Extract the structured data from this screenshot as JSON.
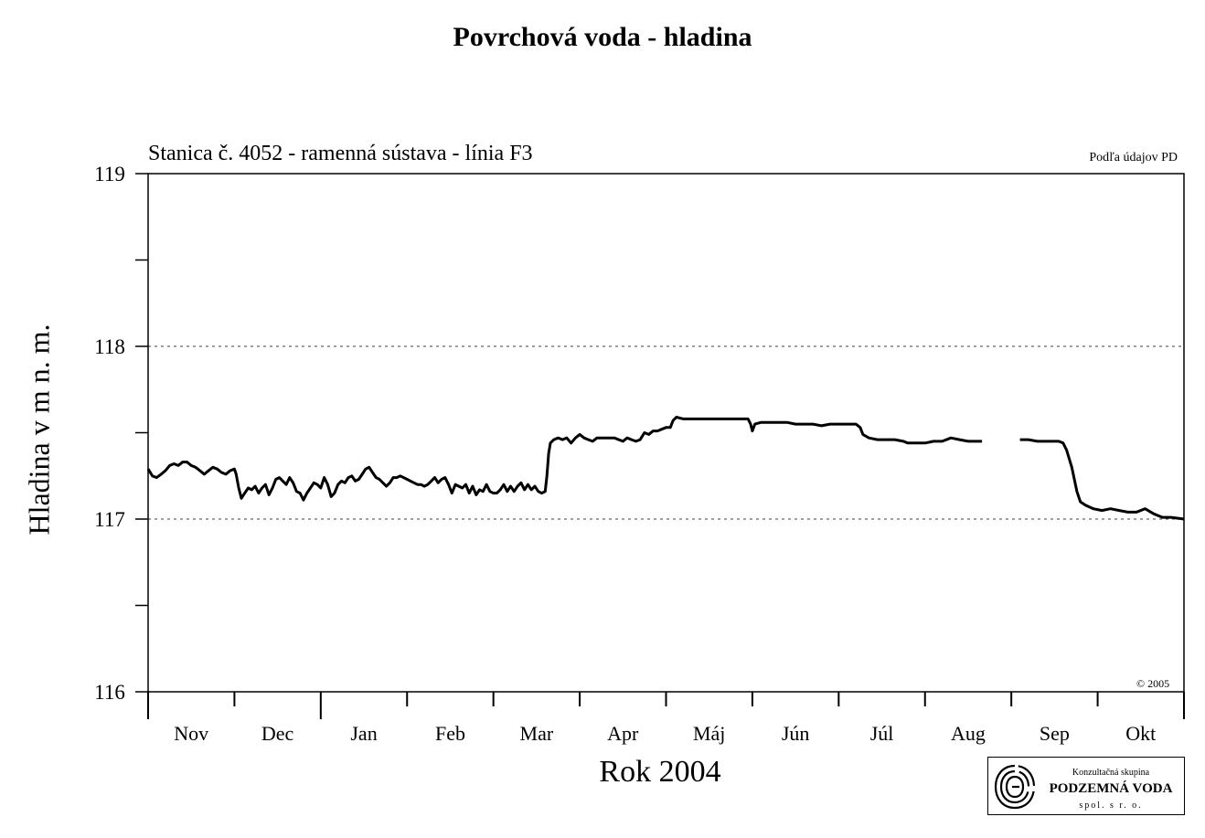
{
  "chart_data": {
    "type": "line",
    "title": "Povrchová voda - hladina",
    "subtitle": "Stanica č. 4052 - ramenná sústava - línia F3",
    "source_note": "Podľa údajov PD",
    "copyright": "© 2005",
    "ylabel": "Hladina v m n. m.",
    "xlabel": "Rok 2004",
    "ylim": [
      116,
      119
    ],
    "y_ticks": [
      "116",
      "117",
      "118",
      "119"
    ],
    "gridlines": [
      117,
      118
    ],
    "months": [
      "Nov",
      "Dec",
      "Jan",
      "Feb",
      "Mar",
      "Apr",
      "Máj",
      "Jún",
      "Júl",
      "Aug",
      "Sep",
      "Okt"
    ],
    "x_domain_months": [
      0,
      12
    ],
    "series": [
      {
        "values": [
          [
            0.0,
            117.29
          ],
          [
            0.05,
            117.25
          ],
          [
            0.1,
            117.24
          ],
          [
            0.15,
            117.26
          ],
          [
            0.2,
            117.28
          ],
          [
            0.25,
            117.31
          ],
          [
            0.3,
            117.32
          ],
          [
            0.35,
            117.31
          ],
          [
            0.4,
            117.33
          ],
          [
            0.45,
            117.33
          ],
          [
            0.5,
            117.31
          ],
          [
            0.55,
            117.3
          ],
          [
            0.6,
            117.28
          ],
          [
            0.65,
            117.26
          ],
          [
            0.7,
            117.28
          ],
          [
            0.75,
            117.3
          ],
          [
            0.8,
            117.29
          ],
          [
            0.85,
            117.27
          ],
          [
            0.9,
            117.26
          ],
          [
            0.95,
            117.28
          ],
          [
            1.0,
            117.29
          ],
          [
            1.02,
            117.26
          ],
          [
            1.05,
            117.18
          ],
          [
            1.08,
            117.12
          ],
          [
            1.12,
            117.15
          ],
          [
            1.16,
            117.18
          ],
          [
            1.2,
            117.17
          ],
          [
            1.24,
            117.19
          ],
          [
            1.28,
            117.15
          ],
          [
            1.32,
            117.18
          ],
          [
            1.36,
            117.2
          ],
          [
            1.4,
            117.14
          ],
          [
            1.44,
            117.18
          ],
          [
            1.48,
            117.23
          ],
          [
            1.52,
            117.24
          ],
          [
            1.56,
            117.22
          ],
          [
            1.6,
            117.2
          ],
          [
            1.64,
            117.24
          ],
          [
            1.68,
            117.21
          ],
          [
            1.72,
            117.16
          ],
          [
            1.76,
            117.15
          ],
          [
            1.8,
            117.11
          ],
          [
            1.84,
            117.15
          ],
          [
            1.88,
            117.18
          ],
          [
            1.92,
            117.21
          ],
          [
            1.96,
            117.2
          ],
          [
            2.0,
            117.18
          ],
          [
            2.04,
            117.24
          ],
          [
            2.08,
            117.2
          ],
          [
            2.12,
            117.13
          ],
          [
            2.16,
            117.15
          ],
          [
            2.2,
            117.2
          ],
          [
            2.24,
            117.22
          ],
          [
            2.28,
            117.21
          ],
          [
            2.32,
            117.24
          ],
          [
            2.36,
            117.25
          ],
          [
            2.4,
            117.22
          ],
          [
            2.44,
            117.23
          ],
          [
            2.48,
            117.26
          ],
          [
            2.52,
            117.29
          ],
          [
            2.56,
            117.3
          ],
          [
            2.6,
            117.27
          ],
          [
            2.64,
            117.24
          ],
          [
            2.68,
            117.23
          ],
          [
            2.72,
            117.21
          ],
          [
            2.76,
            117.19
          ],
          [
            2.8,
            117.21
          ],
          [
            2.84,
            117.24
          ],
          [
            2.88,
            117.24
          ],
          [
            2.92,
            117.25
          ],
          [
            2.96,
            117.24
          ],
          [
            3.0,
            117.23
          ],
          [
            3.04,
            117.22
          ],
          [
            3.08,
            117.21
          ],
          [
            3.12,
            117.2
          ],
          [
            3.16,
            117.2
          ],
          [
            3.2,
            117.19
          ],
          [
            3.24,
            117.2
          ],
          [
            3.28,
            117.22
          ],
          [
            3.32,
            117.24
          ],
          [
            3.36,
            117.21
          ],
          [
            3.4,
            117.23
          ],
          [
            3.44,
            117.24
          ],
          [
            3.48,
            117.2
          ],
          [
            3.52,
            117.15
          ],
          [
            3.56,
            117.2
          ],
          [
            3.6,
            117.19
          ],
          [
            3.64,
            117.18
          ],
          [
            3.68,
            117.2
          ],
          [
            3.72,
            117.15
          ],
          [
            3.76,
            117.19
          ],
          [
            3.8,
            117.14
          ],
          [
            3.84,
            117.17
          ],
          [
            3.88,
            117.16
          ],
          [
            3.92,
            117.2
          ],
          [
            3.96,
            117.16
          ],
          [
            4.0,
            117.15
          ],
          [
            4.04,
            117.15
          ],
          [
            4.08,
            117.17
          ],
          [
            4.12,
            117.2
          ],
          [
            4.16,
            117.16
          ],
          [
            4.2,
            117.19
          ],
          [
            4.24,
            117.16
          ],
          [
            4.28,
            117.19
          ],
          [
            4.32,
            117.21
          ],
          [
            4.36,
            117.17
          ],
          [
            4.4,
            117.2
          ],
          [
            4.44,
            117.17
          ],
          [
            4.48,
            117.19
          ],
          [
            4.52,
            117.16
          ],
          [
            4.56,
            117.15
          ],
          [
            4.6,
            117.16
          ],
          [
            4.62,
            117.25
          ],
          [
            4.64,
            117.38
          ],
          [
            4.66,
            117.44
          ],
          [
            4.7,
            117.46
          ],
          [
            4.75,
            117.47
          ],
          [
            4.8,
            117.46
          ],
          [
            4.85,
            117.47
          ],
          [
            4.9,
            117.44
          ],
          [
            4.95,
            117.47
          ],
          [
            5.0,
            117.49
          ],
          [
            5.05,
            117.47
          ],
          [
            5.1,
            117.46
          ],
          [
            5.15,
            117.45
          ],
          [
            5.2,
            117.47
          ],
          [
            5.3,
            117.47
          ],
          [
            5.4,
            117.47
          ],
          [
            5.5,
            117.45
          ],
          [
            5.55,
            117.47
          ],
          [
            5.6,
            117.46
          ],
          [
            5.65,
            117.45
          ],
          [
            5.7,
            117.46
          ],
          [
            5.75,
            117.5
          ],
          [
            5.8,
            117.49
          ],
          [
            5.85,
            117.51
          ],
          [
            5.9,
            117.51
          ],
          [
            5.95,
            117.52
          ],
          [
            6.0,
            117.53
          ],
          [
            6.05,
            117.53
          ],
          [
            6.08,
            117.57
          ],
          [
            6.12,
            117.59
          ],
          [
            6.2,
            117.58
          ],
          [
            6.3,
            117.58
          ],
          [
            6.4,
            117.58
          ],
          [
            6.5,
            117.58
          ],
          [
            6.6,
            117.58
          ],
          [
            6.7,
            117.58
          ],
          [
            6.8,
            117.58
          ],
          [
            6.9,
            117.58
          ],
          [
            6.95,
            117.58
          ],
          [
            6.98,
            117.55
          ],
          [
            7.0,
            117.51
          ],
          [
            7.03,
            117.55
          ],
          [
            7.1,
            117.56
          ],
          [
            7.2,
            117.56
          ],
          [
            7.3,
            117.56
          ],
          [
            7.4,
            117.56
          ],
          [
            7.5,
            117.55
          ],
          [
            7.6,
            117.55
          ],
          [
            7.7,
            117.55
          ],
          [
            7.8,
            117.54
          ],
          [
            7.9,
            117.55
          ],
          [
            8.0,
            117.55
          ],
          [
            8.1,
            117.55
          ],
          [
            8.2,
            117.55
          ],
          [
            8.25,
            117.53
          ],
          [
            8.28,
            117.49
          ],
          [
            8.35,
            117.47
          ],
          [
            8.45,
            117.46
          ],
          [
            8.55,
            117.46
          ],
          [
            8.65,
            117.46
          ],
          [
            8.75,
            117.45
          ],
          [
            8.8,
            117.44
          ],
          [
            8.9,
            117.44
          ],
          [
            9.0,
            117.44
          ],
          [
            9.1,
            117.45
          ],
          [
            9.2,
            117.45
          ],
          [
            9.3,
            117.47
          ],
          [
            9.4,
            117.46
          ],
          [
            9.5,
            117.45
          ],
          [
            9.6,
            117.45
          ],
          [
            9.66,
            117.45
          ],
          null,
          [
            10.1,
            117.46
          ],
          [
            10.2,
            117.46
          ],
          [
            10.3,
            117.45
          ],
          [
            10.4,
            117.45
          ],
          [
            10.5,
            117.45
          ],
          [
            10.55,
            117.45
          ],
          [
            10.6,
            117.44
          ],
          [
            10.64,
            117.4
          ],
          [
            10.7,
            117.3
          ],
          [
            10.76,
            117.16
          ],
          [
            10.8,
            117.1
          ],
          [
            10.86,
            117.08
          ],
          [
            10.95,
            117.06
          ],
          [
            11.05,
            117.05
          ],
          [
            11.15,
            117.06
          ],
          [
            11.25,
            117.05
          ],
          [
            11.35,
            117.04
          ],
          [
            11.45,
            117.04
          ],
          [
            11.55,
            117.06
          ],
          [
            11.65,
            117.03
          ],
          [
            11.75,
            117.01
          ],
          [
            11.85,
            117.01
          ],
          [
            12.0,
            117.0
          ]
        ]
      }
    ]
  },
  "logo": {
    "line1": "Konzultačná skupina",
    "line2": "PODZEMNÁ VODA",
    "line3": "spol. s r. o."
  }
}
